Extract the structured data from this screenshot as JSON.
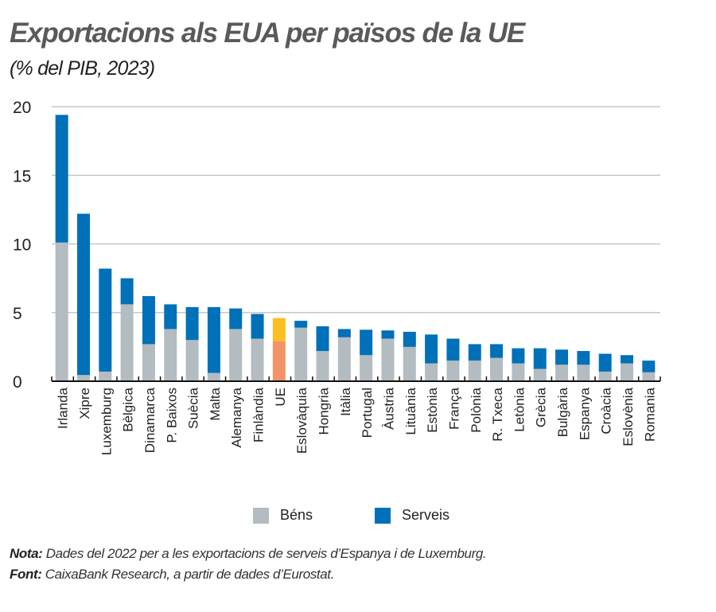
{
  "title": "Exportacions als EUA per països de la UE",
  "subtitle": "(% del PIB, 2023)",
  "colors": {
    "goods": "#b3bcc0",
    "services": "#0070b8",
    "eu_goods": "#f4936a",
    "eu_services": "#fbbf24",
    "grid": "#bdbdbd"
  },
  "legend": {
    "goods": "Béns",
    "services": "Serveis"
  },
  "note": {
    "label": "Nota:",
    "text": " Dades del 2022 per a les exportacions de serveis d’Espanya i de Luxemburg."
  },
  "source": {
    "label": "Font:",
    "text": " CaixaBank Research, a partir de dades d’Eurostat."
  },
  "chart_data": {
    "type": "bar",
    "stacked": true,
    "ylim": [
      0,
      20
    ],
    "yticks": [
      "0",
      "5",
      "10",
      "15",
      "20"
    ],
    "grid": true,
    "legend_position": "bottom",
    "highlight": "UE",
    "categories": [
      "Irlanda",
      "Xipre",
      "Luxemburg",
      "Bèlgica",
      "Dinamarca",
      "P. Baixos",
      "Suècia",
      "Malta",
      "Alemanya",
      "Finlàndia",
      "UE",
      "Eslovàquia",
      "Hongria",
      "Itàlia",
      "Portugal",
      "Àustria",
      "Lituània",
      "Estònia",
      "França",
      "Polònia",
      "R. Txeca",
      "Letònia",
      "Grècia",
      "Bulgària",
      "Espanya",
      "Croàcia",
      "Eslovènia",
      "Romania"
    ],
    "series": [
      {
        "name": "Béns",
        "values": [
          10.1,
          0.45,
          0.7,
          5.6,
          2.7,
          3.8,
          3.0,
          0.6,
          3.8,
          3.1,
          2.9,
          3.9,
          2.2,
          3.2,
          1.9,
          3.1,
          2.5,
          1.3,
          1.5,
          1.5,
          1.7,
          1.3,
          0.9,
          1.2,
          1.2,
          0.7,
          1.3,
          0.65
        ]
      },
      {
        "name": "Serveis",
        "values": [
          9.3,
          11.75,
          7.5,
          1.9,
          3.5,
          1.8,
          2.4,
          4.8,
          1.5,
          1.8,
          1.7,
          0.5,
          1.8,
          0.6,
          1.85,
          0.6,
          1.1,
          2.1,
          1.6,
          1.2,
          1.0,
          1.1,
          1.5,
          1.1,
          1.0,
          1.3,
          0.6,
          0.85
        ]
      }
    ]
  }
}
